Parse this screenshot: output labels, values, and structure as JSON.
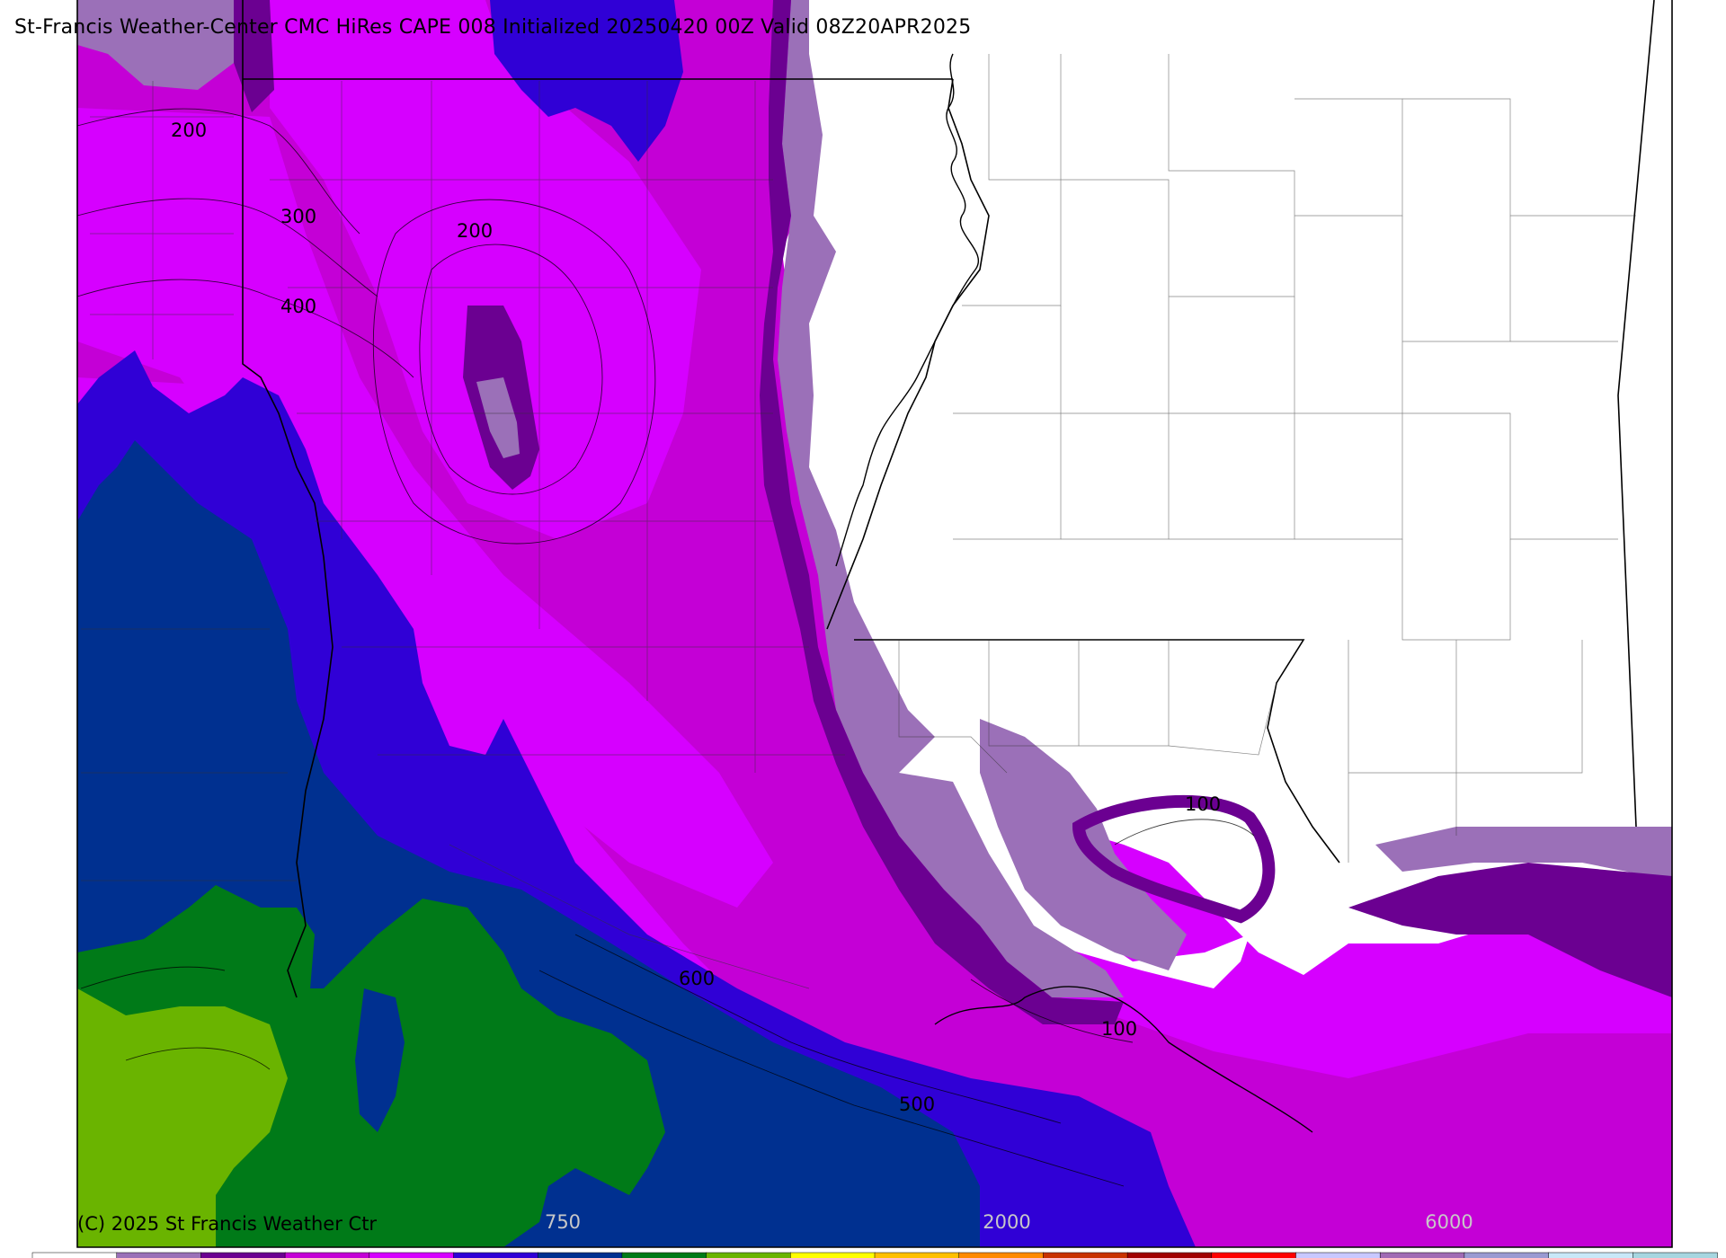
{
  "title": "St-Francis Weather-Center CMC HiRes CAPE  008 Initialized 20250420 00Z Valid 08Z20APR2025",
  "copyright": "(C) 2025 St Francis Weather Ctr",
  "colorbar": {
    "labels": [
      "750",
      "2000",
      "6000"
    ],
    "colors": [
      "#ffffff",
      "#9b70b8",
      "#6b0091",
      "#c400d6",
      "#d600ff",
      "#3000d6",
      "#003090",
      "#007a18",
      "#6ab400",
      "#ffff00",
      "#ffc000",
      "#ff8a00",
      "#c83200",
      "#a00000",
      "#ff0000",
      "#c8c8ff",
      "#a06ab4",
      "#9a9ad2",
      "#c8e8f8",
      "#a6d6e0"
    ]
  },
  "contour_labels": [
    "200",
    "300",
    "200",
    "400",
    "100",
    "600",
    "100",
    "500"
  ],
  "legend_colors": {
    "cape_0": "#ffffff",
    "cape_25": "#9b70b8",
    "cape_50": "#6b0091",
    "cape_100": "#c400d6",
    "cape_250": "#d600ff",
    "cape_500": "#3000d6",
    "cape_750": "#003090",
    "cape_1000": "#007a18",
    "cape_1500": "#6ab400"
  }
}
